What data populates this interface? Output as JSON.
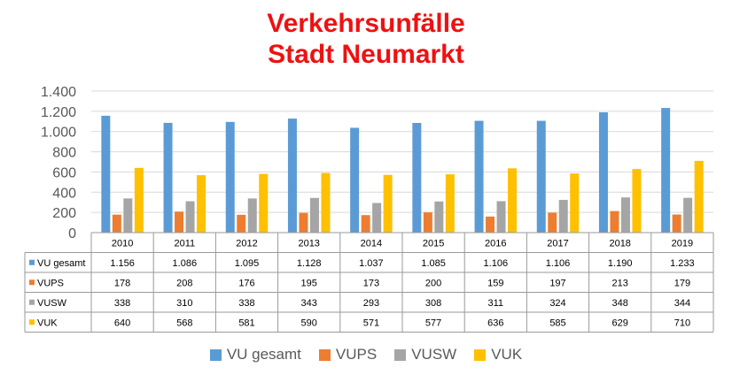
{
  "chart_data": {
    "type": "bar",
    "title": "Verkehrsunfälle",
    "subtitle": "Stadt Neumarkt",
    "categories": [
      "2010",
      "2011",
      "2012",
      "2013",
      "2014",
      "2015",
      "2016",
      "2017",
      "2018",
      "2019"
    ],
    "series": [
      {
        "name": "VU gesamt",
        "color": "#5b9bd5",
        "values": [
          1156,
          1086,
          1095,
          1128,
          1037,
          1085,
          1106,
          1106,
          1190,
          1233
        ],
        "labels": [
          "1.156",
          "1.086",
          "1.095",
          "1.128",
          "1.037",
          "1.085",
          "1.106",
          "1.106",
          "1.190",
          "1.233"
        ]
      },
      {
        "name": "VUPS",
        "color": "#ed7d31",
        "values": [
          178,
          208,
          176,
          195,
          173,
          200,
          159,
          197,
          213,
          179
        ],
        "labels": [
          "178",
          "208",
          "176",
          "195",
          "173",
          "200",
          "159",
          "197",
          "213",
          "179"
        ]
      },
      {
        "name": "VUSW",
        "color": "#a5a5a5",
        "values": [
          338,
          310,
          338,
          343,
          293,
          308,
          311,
          324,
          348,
          344
        ],
        "labels": [
          "338",
          "310",
          "338",
          "343",
          "293",
          "308",
          "311",
          "324",
          "348",
          "344"
        ]
      },
      {
        "name": "VUK",
        "color": "#ffc000",
        "values": [
          640,
          568,
          581,
          590,
          571,
          577,
          636,
          585,
          629,
          710
        ],
        "labels": [
          "640",
          "568",
          "581",
          "590",
          "571",
          "577",
          "636",
          "585",
          "629",
          "710"
        ]
      }
    ],
    "ylim": [
      0,
      1400
    ],
    "yticks": [
      0,
      200,
      400,
      600,
      800,
      1000,
      1200,
      1400
    ],
    "ytick_labels": [
      "0",
      "200",
      "400",
      "600",
      "800",
      "1.000",
      "1.200",
      "1.400"
    ],
    "grid": true,
    "data_table": true,
    "legend_position": "bottom"
  }
}
